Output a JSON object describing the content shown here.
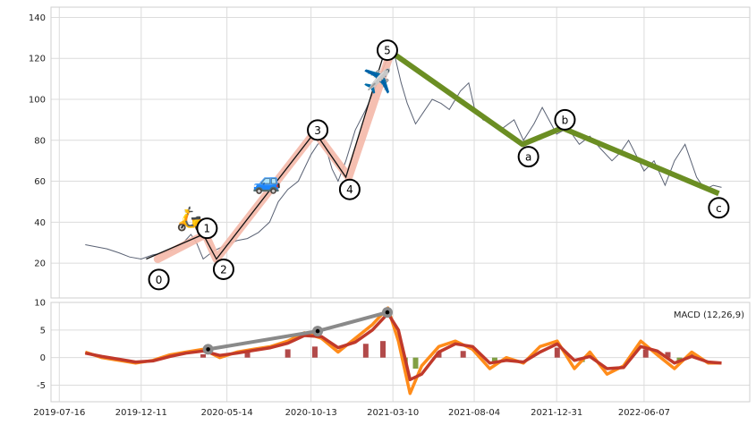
{
  "chart_data": [
    {
      "type": "line",
      "panel": "price",
      "title": "",
      "xlabel": "",
      "ylabel": "",
      "ylim": [
        3,
        145
      ],
      "yticks": [
        20,
        40,
        60,
        80,
        100,
        120,
        140
      ],
      "grid": true,
      "series": [
        {
          "role": "price",
          "color": "#5a6274",
          "x": [
            "2019-09-01",
            "2019-09-20",
            "2019-10-10",
            "2019-11-01",
            "2019-11-20",
            "2019-12-11",
            "2020-01-01",
            "2020-01-20",
            "2020-02-10",
            "2020-02-25",
            "2020-03-10",
            "2020-03-20",
            "2020-04-01",
            "2020-04-20",
            "2020-05-14",
            "2020-06-01",
            "2020-06-20",
            "2020-07-10",
            "2020-07-30",
            "2020-08-15",
            "2020-09-01",
            "2020-09-20",
            "2020-10-13",
            "2020-10-25",
            "2020-11-05",
            "2020-11-20",
            "2020-12-01",
            "2020-12-15",
            "2021-01-01",
            "2021-01-20",
            "2021-02-10",
            "2021-02-25",
            "2021-03-10",
            "2021-03-25",
            "2021-04-05",
            "2021-04-20",
            "2021-05-05",
            "2021-05-20",
            "2021-06-05",
            "2021-06-20",
            "2021-07-10",
            "2021-07-25",
            "2021-08-04",
            "2021-08-20",
            "2021-09-10",
            "2021-09-25",
            "2021-10-15",
            "2021-11-01",
            "2021-11-20",
            "2021-12-05",
            "2021-12-31",
            "2022-01-20",
            "2022-02-10",
            "2022-03-01",
            "2022-03-20",
            "2022-04-10",
            "2022-04-25",
            "2022-05-10",
            "2022-05-25",
            "2022-06-07",
            "2022-06-25",
            "2022-07-15",
            "2022-08-01",
            "2022-08-20",
            "2022-09-10",
            "2022-09-25",
            "2022-10-10",
            "2022-10-25"
          ],
          "values": [
            29,
            28,
            27,
            25,
            23,
            22,
            24,
            25,
            27,
            30,
            34,
            30,
            22,
            26,
            29,
            31,
            32,
            35,
            40,
            50,
            56,
            60,
            73,
            78,
            80,
            66,
            60,
            70,
            85,
            95,
            108,
            118,
            125,
            108,
            98,
            88,
            94,
            100,
            98,
            95,
            104,
            108,
            96,
            90,
            88,
            86,
            90,
            80,
            88,
            96,
            83,
            86,
            78,
            82,
            76,
            70,
            74,
            80,
            72,
            65,
            70,
            58,
            70,
            78,
            62,
            56,
            58,
            57
          ]
        },
        {
          "role": "wave-trend-band",
          "color": "#f4b8a8",
          "x": [
            "2020-01-10",
            "2020-04-05",
            "2020-04-25",
            "2020-10-20",
            "2020-12-20",
            "2021-03-05"
          ],
          "values": [
            22,
            34,
            22,
            84,
            62,
            122
          ]
        }
      ]
    },
    {
      "type": "line",
      "panel": "elliott-waves",
      "series": [
        {
          "name": "",
          "role": "impulse",
          "color": "#111111",
          "labels": [
            "0",
            "1",
            "2",
            "3",
            "4",
            "5"
          ],
          "x": [
            "2019-12-20",
            "2020-04-01",
            "2020-04-25",
            "2020-10-20",
            "2020-12-15",
            "2021-02-25"
          ],
          "values": [
            22,
            34,
            22,
            84,
            62,
            125
          ]
        },
        {
          "name": "",
          "role": "correction",
          "color": "#6b8e23",
          "labels": [
            "5",
            "a",
            "b",
            "c"
          ],
          "x": [
            "2021-02-25",
            "2021-10-30",
            "2022-01-10",
            "2022-10-20"
          ],
          "values": [
            125,
            78,
            86,
            54
          ]
        }
      ],
      "point_labels": [
        {
          "text": "0",
          "x": "2020-01-12",
          "y": 12
        },
        {
          "text": "1",
          "x": "2020-04-08",
          "y": 37
        },
        {
          "text": "2",
          "x": "2020-05-08",
          "y": 17
        },
        {
          "text": "3",
          "x": "2020-10-25",
          "y": 85
        },
        {
          "text": "4",
          "x": "2020-12-22",
          "y": 56
        },
        {
          "text": "5",
          "x": "2021-02-28",
          "y": 124
        },
        {
          "text": "a",
          "x": "2021-11-10",
          "y": 72
        },
        {
          "text": "b",
          "x": "2022-01-15",
          "y": 90
        },
        {
          "text": "c",
          "x": "2022-10-20",
          "y": 47
        }
      ],
      "emoji_markers": [
        {
          "text": "🛵",
          "x": "2020-03-10",
          "y": 38
        },
        {
          "text": "🚙",
          "x": "2020-07-25",
          "y": 56
        },
        {
          "text": "✈️",
          "x": "2021-02-10",
          "y": 105
        }
      ]
    },
    {
      "type": "line",
      "panel": "macd",
      "annotation": "MACD (12,26,9)",
      "ylim": [
        -8,
        10
      ],
      "yticks": [
        -5,
        0,
        5,
        10
      ],
      "grid": true,
      "categories": [
        "2019-07-16",
        "2019-12-11",
        "2020-05-14",
        "2020-10-13",
        "2021-03-10",
        "2021-08-04",
        "2021-12-31",
        "2022-06-07"
      ],
      "series": [
        {
          "role": "macd",
          "color": "#ff8c1a",
          "x": [
            "2019-09-01",
            "2019-10-01",
            "2019-11-01",
            "2019-12-01",
            "2020-01-01",
            "2020-02-01",
            "2020-03-01",
            "2020-04-01",
            "2020-05-01",
            "2020-06-01",
            "2020-07-01",
            "2020-08-01",
            "2020-09-01",
            "2020-10-01",
            "2020-11-01",
            "2020-12-01",
            "2021-01-01",
            "2021-02-01",
            "2021-03-01",
            "2021-03-20",
            "2021-04-10",
            "2021-05-01",
            "2021-06-01",
            "2021-07-01",
            "2021-08-01",
            "2021-09-01",
            "2021-10-01",
            "2021-11-01",
            "2021-12-01",
            "2022-01-01",
            "2022-02-01",
            "2022-03-01",
            "2022-04-01",
            "2022-05-01",
            "2022-06-01",
            "2022-07-01",
            "2022-08-01",
            "2022-09-01",
            "2022-10-01",
            "2022-10-25"
          ],
          "values": [
            1,
            0,
            -0.5,
            -1,
            -0.5,
            0.5,
            1,
            1.5,
            0,
            1,
            1.5,
            2,
            3,
            4.5,
            3.5,
            1,
            3.5,
            6,
            9,
            3,
            -6.5,
            -1.5,
            2,
            3,
            1.5,
            -2,
            0,
            -1,
            2,
            3,
            -2,
            1,
            -3,
            -1.5,
            3,
            0.5,
            -2,
            1,
            -1,
            -1
          ]
        },
        {
          "role": "signal",
          "color": "#c0392b",
          "x": [
            "2019-09-01",
            "2019-10-01",
            "2019-11-01",
            "2019-12-01",
            "2020-01-01",
            "2020-02-01",
            "2020-03-01",
            "2020-04-01",
            "2020-05-01",
            "2020-06-01",
            "2020-07-01",
            "2020-08-01",
            "2020-09-01",
            "2020-10-01",
            "2020-11-01",
            "2020-12-01",
            "2021-01-01",
            "2021-02-01",
            "2021-03-01",
            "2021-03-20",
            "2021-04-10",
            "2021-05-01",
            "2021-06-01",
            "2021-07-01",
            "2021-08-01",
            "2021-09-01",
            "2021-10-01",
            "2021-11-01",
            "2021-12-01",
            "2022-01-01",
            "2022-02-01",
            "2022-03-01",
            "2022-04-01",
            "2022-05-01",
            "2022-06-01",
            "2022-07-01",
            "2022-08-01",
            "2022-09-01",
            "2022-10-01",
            "2022-10-25"
          ],
          "values": [
            0.8,
            0.2,
            -0.3,
            -0.8,
            -0.6,
            0.2,
            0.8,
            1.2,
            0.4,
            0.8,
            1.3,
            1.8,
            2.6,
            4,
            3.8,
            1.8,
            2.8,
            5,
            8,
            5,
            -4,
            -3,
            1,
            2.5,
            2,
            -1,
            -0.5,
            -0.8,
            1,
            2.5,
            -0.5,
            0.2,
            -2,
            -1.8,
            2,
            1.2,
            -1,
            0.2,
            -0.8,
            -1
          ]
        },
        {
          "role": "histogram-pos",
          "color": "#a52a2a",
          "x": [
            "2020-04-01",
            "2020-06-20",
            "2020-09-01",
            "2020-10-20",
            "2021-01-20",
            "2021-02-20",
            "2021-06-01",
            "2021-07-15",
            "2022-01-01",
            "2022-06-10",
            "2022-07-20",
            "2022-09-01"
          ],
          "values": [
            0.6,
            1,
            1.5,
            2,
            2.5,
            3,
            1,
            1.2,
            1.8,
            1.5,
            1,
            0.6
          ]
        },
        {
          "role": "histogram-neg",
          "color": "#6b8e23",
          "x": [
            "2021-04-01",
            "2021-04-20",
            "2021-09-10",
            "2022-02-15",
            "2022-08-10"
          ],
          "values": [
            -1.5,
            -2,
            -1,
            -0.8,
            -0.9
          ]
        },
        {
          "role": "wave-link",
          "color": "#8a8a8a",
          "x": [
            "2020-04-10",
            "2020-10-25",
            "2021-02-28"
          ],
          "values": [
            1.5,
            4.8,
            8.2
          ]
        }
      ]
    }
  ]
}
